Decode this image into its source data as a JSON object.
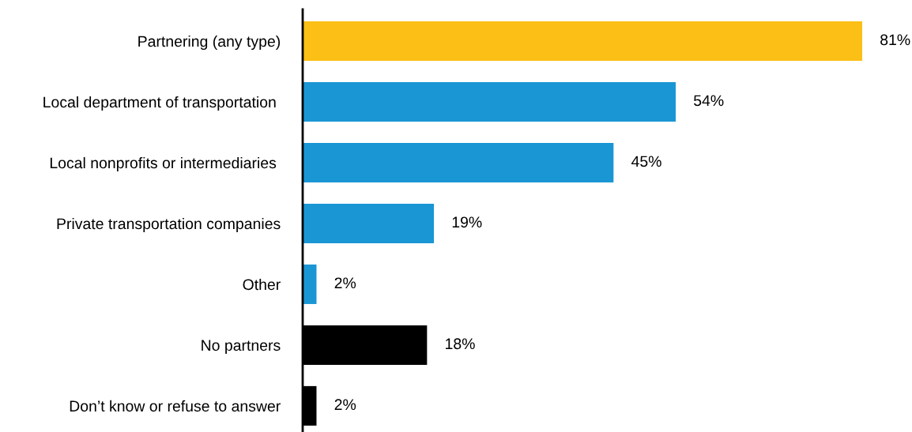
{
  "chart_data": {
    "type": "bar",
    "orientation": "horizontal",
    "categories": [
      "Partnering (any type)",
      "Local department of transportation ",
      "Local nonprofits or intermediaries ",
      "Private transportation companies",
      "Other",
      "No partners",
      "Don’t know or refuse to answer"
    ],
    "values": [
      81,
      54,
      45,
      19,
      2,
      18,
      2
    ],
    "colors": [
      "#fbbf16",
      "#1a96d4",
      "#1a96d4",
      "#1a96d4",
      "#1a96d4",
      "#000000",
      "#000000"
    ],
    "value_labels": [
      "81%",
      "54%",
      "45%",
      "19%",
      "2%",
      "18%",
      "2%"
    ],
    "tick_labels": "y",
    "grid": false,
    "legend": false
  }
}
